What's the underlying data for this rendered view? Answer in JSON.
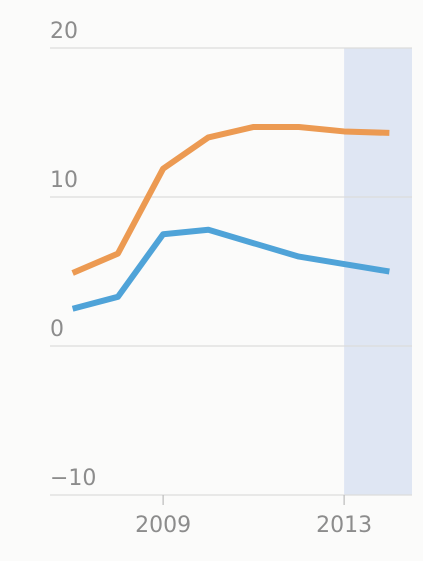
{
  "chart_data": {
    "type": "line",
    "x": [
      2007,
      2008,
      2009,
      2010,
      2011,
      2012,
      2013,
      2014
    ],
    "series": [
      {
        "color": "#ec9a52",
        "values": [
          4.9,
          6.2,
          11.9,
          14.0,
          14.7,
          14.7,
          14.4,
          14.3
        ]
      },
      {
        "color": "#4fa3d8",
        "values": [
          2.5,
          3.3,
          7.5,
          7.8,
          6.9,
          6.0,
          5.5,
          5.0
        ]
      }
    ],
    "xlim": [
      2006.5,
      2014.5
    ],
    "xticks": [
      2009,
      2013
    ],
    "ylim": [
      -10,
      20
    ],
    "yticks": [
      {
        "value": -10,
        "label": "−10"
      },
      0,
      10,
      20
    ],
    "grid": true,
    "highlight": {
      "xlim": [
        2013,
        2014.5
      ],
      "color": "#dfe6f3"
    }
  }
}
